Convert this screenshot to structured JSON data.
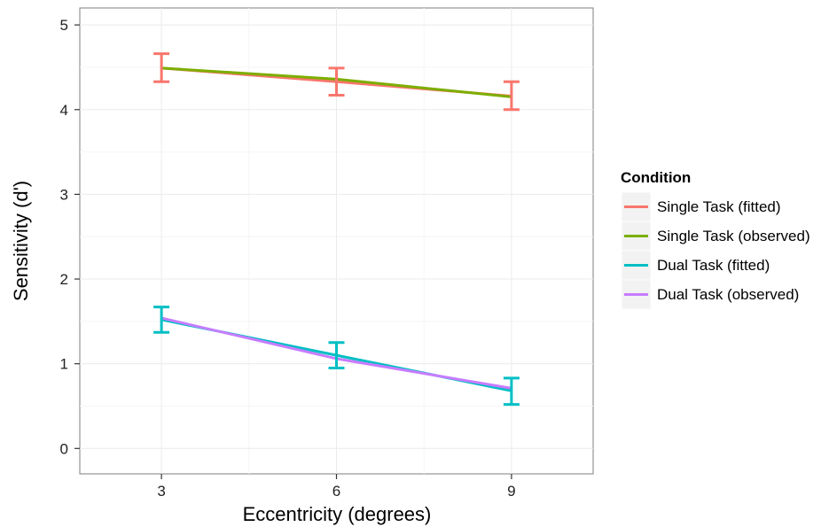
{
  "chart_data": {
    "type": "line",
    "xlabel": "Eccentricity (degrees)",
    "ylabel": "Sensitivity (d')",
    "xlim": [
      1.6,
      10.4
    ],
    "ylim": [
      -0.3,
      5.2
    ],
    "x": [
      3,
      6,
      9
    ],
    "x_ticks": [
      3,
      6,
      9
    ],
    "y_ticks": [
      0,
      1,
      2,
      3,
      4,
      5
    ],
    "grid": true,
    "legend": {
      "title": "Condition",
      "position": "right"
    },
    "series": [
      {
        "name": "Single Task (fitted)",
        "color": "#f8766d",
        "values": [
          4.49,
          4.33,
          4.16
        ],
        "error_low": [
          4.33,
          4.17,
          4.0
        ],
        "error_high": [
          4.66,
          4.49,
          4.33
        ]
      },
      {
        "name": "Single Task (observed)",
        "color": "#7cae00",
        "values": [
          4.49,
          4.36,
          4.15
        ]
      },
      {
        "name": "Dual Task (fitted)",
        "color": "#00bfc4",
        "values": [
          1.52,
          1.1,
          0.68
        ],
        "error_low": [
          1.37,
          0.95,
          0.52
        ],
        "error_high": [
          1.67,
          1.25,
          0.83
        ]
      },
      {
        "name": "Dual Task (observed)",
        "color": "#c77cff",
        "values": [
          1.54,
          1.06,
          0.71
        ]
      }
    ]
  }
}
